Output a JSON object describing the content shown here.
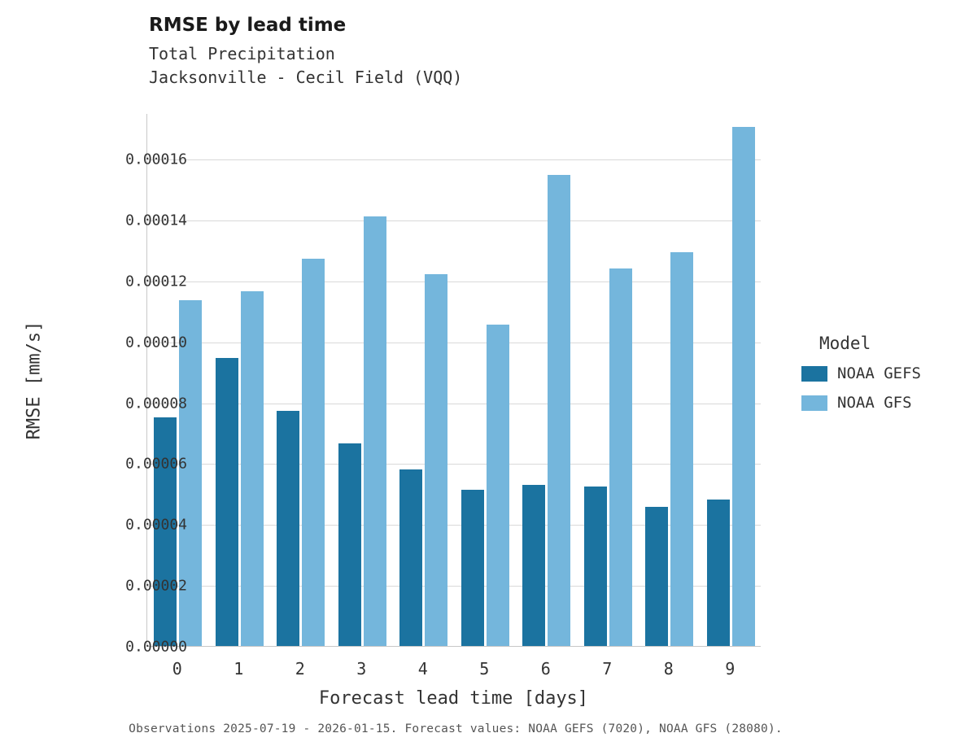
{
  "header": {
    "title": "RMSE by lead time",
    "subtitle1": "Total Precipitation",
    "subtitle2": "Jacksonville - Cecil Field (VQQ)"
  },
  "axes": {
    "x_label": "Forecast lead time [days]",
    "y_label": "RMSE [mm/s]",
    "y_tick_labels": [
      "0.00000",
      "0.00002",
      "0.00004",
      "0.00006",
      "0.00008",
      "0.00010",
      "0.00012",
      "0.00014",
      "0.00016"
    ],
    "y_tick_values": [
      0,
      2e-05,
      4e-05,
      6e-05,
      8e-05,
      0.0001,
      0.00012,
      0.00014,
      0.00016
    ]
  },
  "legend": {
    "title": "Model",
    "entries": [
      {
        "label": "NOAA GEFS",
        "color": "#1b73a0"
      },
      {
        "label": "NOAA GFS",
        "color": "#74b6dc"
      }
    ]
  },
  "caption": "Observations 2025-07-19 - 2026-01-15. Forecast values: NOAA GEFS (7020), NOAA GFS (28080).",
  "chart_data": {
    "type": "bar",
    "title": "RMSE by lead time",
    "xlabel": "Forecast lead time [days]",
    "ylabel": "RMSE [mm/s]",
    "ylim": [
      0,
      0.000175
    ],
    "grid": true,
    "legend_position": "right",
    "categories": [
      "0",
      "1",
      "2",
      "3",
      "4",
      "5",
      "6",
      "7",
      "8",
      "9"
    ],
    "series": [
      {
        "name": "NOAA GEFS",
        "color": "#1b73a0",
        "values": [
          7.5e-05,
          9.45e-05,
          7.72e-05,
          6.65e-05,
          5.8e-05,
          5.13e-05,
          5.3e-05,
          5.25e-05,
          4.58e-05,
          4.8e-05
        ]
      },
      {
        "name": "NOAA GFS",
        "color": "#74b6dc",
        "values": [
          0.0001135,
          0.0001165,
          0.0001272,
          0.000141,
          0.0001222,
          0.0001055,
          0.0001548,
          0.000124,
          0.0001292,
          0.0001705
        ]
      }
    ]
  }
}
